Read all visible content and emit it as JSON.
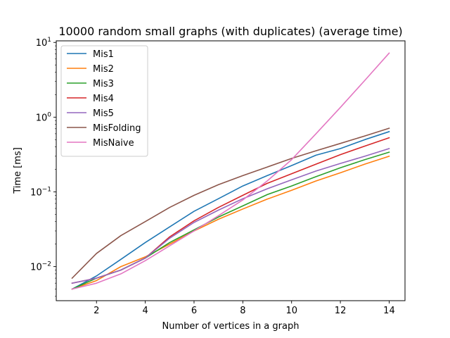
{
  "chart_data": {
    "type": "line",
    "title": "10000 random small graphs (with duplicates) (average time)",
    "xlabel": "Number of vertices in a graph",
    "ylabel": "Time [ms]",
    "yscale": "log",
    "xlim": [
      0.35,
      14.65
    ],
    "ylim": [
      0.0035,
      10.5
    ],
    "x_ticks": [
      2,
      4,
      6,
      8,
      10,
      12,
      14
    ],
    "y_ticks": [
      {
        "value": 0.01,
        "base": "10",
        "exp": "−2"
      },
      {
        "value": 0.1,
        "base": "10",
        "exp": "−1"
      },
      {
        "value": 1,
        "base": "10",
        "exp": "0"
      },
      {
        "value": 10,
        "base": "10",
        "exp": "1"
      }
    ],
    "legend_position": "top-left",
    "x": [
      1,
      2,
      3,
      4,
      5,
      6,
      7,
      8,
      9,
      10,
      11,
      12,
      13,
      14
    ],
    "series": [
      {
        "name": "Mis1",
        "color": "#1f77b4",
        "values": [
          0.005,
          0.0075,
          0.0125,
          0.021,
          0.034,
          0.055,
          0.081,
          0.12,
          0.165,
          0.225,
          0.31,
          0.38,
          0.5,
          0.64
        ]
      },
      {
        "name": "Mis2",
        "color": "#ff7f0e",
        "values": [
          0.005,
          0.0065,
          0.01,
          0.0135,
          0.02,
          0.03,
          0.043,
          0.059,
          0.08,
          0.105,
          0.14,
          0.18,
          0.235,
          0.3
        ]
      },
      {
        "name": "Mis3",
        "color": "#2ca02c",
        "values": [
          0.005,
          0.007,
          0.009,
          0.013,
          0.021,
          0.031,
          0.046,
          0.065,
          0.092,
          0.12,
          0.16,
          0.21,
          0.27,
          0.34
        ]
      },
      {
        "name": "Mis4",
        "color": "#d62728",
        "values": [
          0.006,
          0.007,
          0.009,
          0.013,
          0.025,
          0.041,
          0.062,
          0.09,
          0.13,
          0.175,
          0.235,
          0.315,
          0.41,
          0.53
        ]
      },
      {
        "name": "Mis5",
        "color": "#9467bd",
        "values": [
          0.006,
          0.007,
          0.009,
          0.013,
          0.024,
          0.039,
          0.057,
          0.081,
          0.11,
          0.145,
          0.19,
          0.24,
          0.3,
          0.38
        ]
      },
      {
        "name": "MisFolding",
        "color": "#8c564b",
        "values": [
          0.007,
          0.015,
          0.026,
          0.04,
          0.062,
          0.09,
          0.125,
          0.165,
          0.215,
          0.28,
          0.355,
          0.445,
          0.56,
          0.71
        ]
      },
      {
        "name": "MisNaive",
        "color": "#e377c2",
        "values": [
          0.005,
          0.006,
          0.008,
          0.012,
          0.019,
          0.03,
          0.048,
          0.078,
          0.14,
          0.27,
          0.6,
          1.35,
          3.1,
          7.2
        ]
      }
    ]
  }
}
